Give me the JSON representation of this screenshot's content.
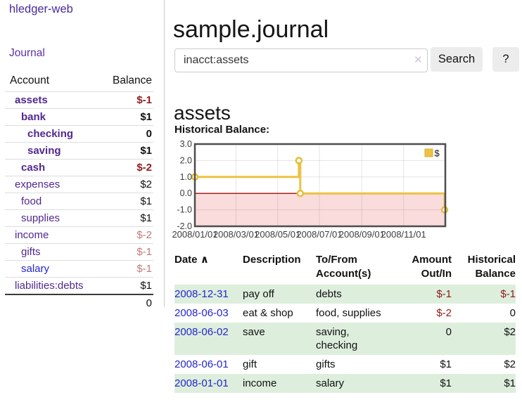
{
  "sidebar": {
    "app_title": "hledger-web",
    "journal_link": "Journal",
    "accounts": {
      "header_account": "Account",
      "header_balance": "Balance",
      "rows": [
        {
          "name": "assets",
          "balance": "$-1"
        },
        {
          "name": "bank",
          "balance": "$1"
        },
        {
          "name": "checking",
          "balance": "0"
        },
        {
          "name": "saving",
          "balance": "$1"
        },
        {
          "name": "cash",
          "balance": "$-2"
        },
        {
          "name": "expenses",
          "balance": "$2"
        },
        {
          "name": "food",
          "balance": "$1"
        },
        {
          "name": "supplies",
          "balance": "$1"
        },
        {
          "name": "income",
          "balance": "$-2"
        },
        {
          "name": "gifts",
          "balance": "$-1"
        },
        {
          "name": "salary",
          "balance": "$-1"
        },
        {
          "name": "liabilities:debts",
          "balance": "$1"
        }
      ],
      "total": "0"
    }
  },
  "main": {
    "page_title": "sample.journal",
    "search": {
      "value": "inacct:assets",
      "clear_icon": "✕",
      "search_button": "Search",
      "help_button": "?"
    },
    "account_heading": "assets",
    "section_label": "Historical Balance:"
  },
  "chart_data": {
    "type": "line",
    "title": "Historical Balance",
    "step": true,
    "series": [
      {
        "name": "$",
        "color": "#edc242",
        "points": [
          [
            "2008-01-01",
            1
          ],
          [
            "2008-06-01",
            2
          ],
          [
            "2008-06-03",
            0
          ],
          [
            "2008-12-31",
            -1
          ]
        ]
      }
    ],
    "x_range": [
      "2008-01-01",
      "2009-01-01"
    ],
    "ylim": [
      -2,
      3
    ],
    "y_tick_labels": [
      "3.0",
      "2.0",
      "1.0",
      "0.0",
      "-1.0",
      "-2.0"
    ],
    "x_tick_labels": [
      "2008/01/01",
      "2008/03/01",
      "2008/05/01",
      "2008/07/01",
      "2008/09/01",
      "2008/11/01"
    ],
    "legend_position": "top-right",
    "grid": true,
    "negative_region": true
  },
  "register": {
    "headers": {
      "date": "Date",
      "sort_icon": "∧",
      "description": "Description",
      "accounts": "To/From Account(s)",
      "amount": "Amount Out/In",
      "balance": "Historical Balance"
    },
    "rows": [
      {
        "date": "2008-12-31",
        "description": "pay off",
        "accounts": "debts",
        "amount": "$-1",
        "balance": "$-1"
      },
      {
        "date": "2008-06-03",
        "description": "eat & shop",
        "accounts": "food, supplies",
        "amount": "$-2",
        "balance": "0"
      },
      {
        "date": "2008-06-02",
        "description": "save",
        "accounts": "saving, checking",
        "amount": "0",
        "balance": "$2"
      },
      {
        "date": "2008-06-01",
        "description": "gift",
        "accounts": "gifts",
        "amount": "$1",
        "balance": "$2"
      },
      {
        "date": "2008-01-01",
        "description": "income",
        "accounts": "salary",
        "amount": "$1",
        "balance": "$1"
      }
    ]
  },
  "colors": {
    "link_purple": "#51288f",
    "link_blue": "#2626cc",
    "negative_dark": "#8e1b1b",
    "negative_light": "#c47878",
    "row_green": "#ddeedd",
    "chart_line": "#edc242",
    "chart_negative_fill": "#fadcdc",
    "chart_zero_line": "#9e0b0b",
    "chart_border": "#4d4d4d"
  }
}
